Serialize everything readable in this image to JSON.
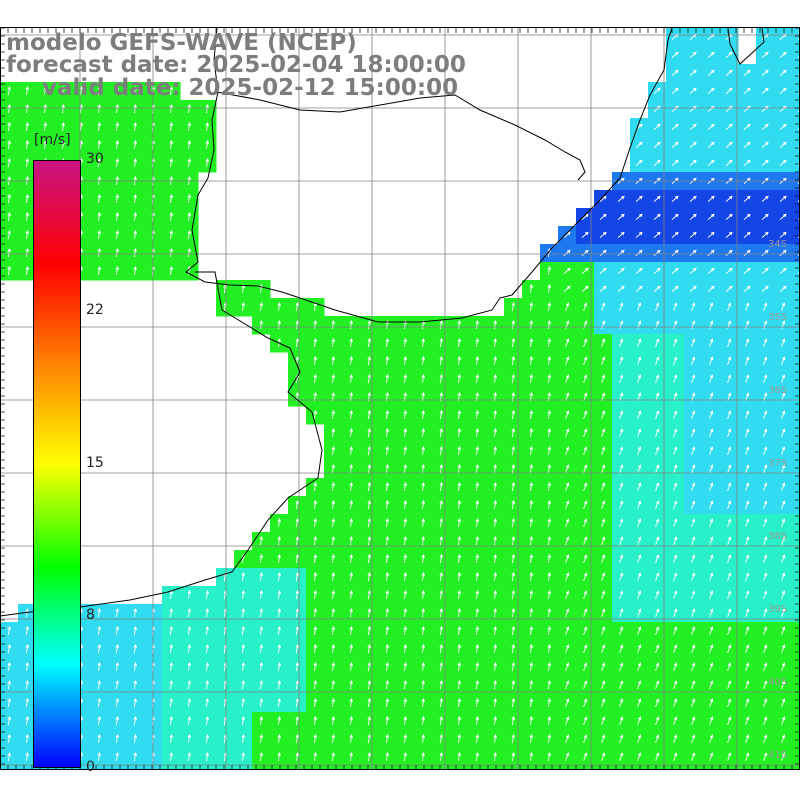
{
  "title": {
    "line1": "modelo GEFS-WAVE (NCEP)",
    "line2": "forecast date: 2025-02-04 18:00:00",
    "line3": "valid date: 2025-02-12 15:00:00"
  },
  "colorbar": {
    "unit": "[m/s]",
    "ticks": [
      "30",
      "22",
      "15",
      "8",
      "0"
    ],
    "min": 0,
    "max": 30,
    "stops": [
      "#0000ff",
      "#00ffff",
      "#00ff00",
      "#ffff00",
      "#ff7f00",
      "#ff0000",
      "#c71585"
    ]
  },
  "map": {
    "lat_labels": [
      "34S",
      "35S",
      "36S",
      "37S",
      "38S",
      "39S",
      "40S",
      "41S"
    ],
    "field_colors": {
      "green": "#22f022",
      "teal": "#28f0c8",
      "cyan": "#32dcf0",
      "blue": "#1e78f0",
      "deep_blue": "#1446e6"
    },
    "land_color": "#ffffff",
    "grid_color": "#808080"
  }
}
